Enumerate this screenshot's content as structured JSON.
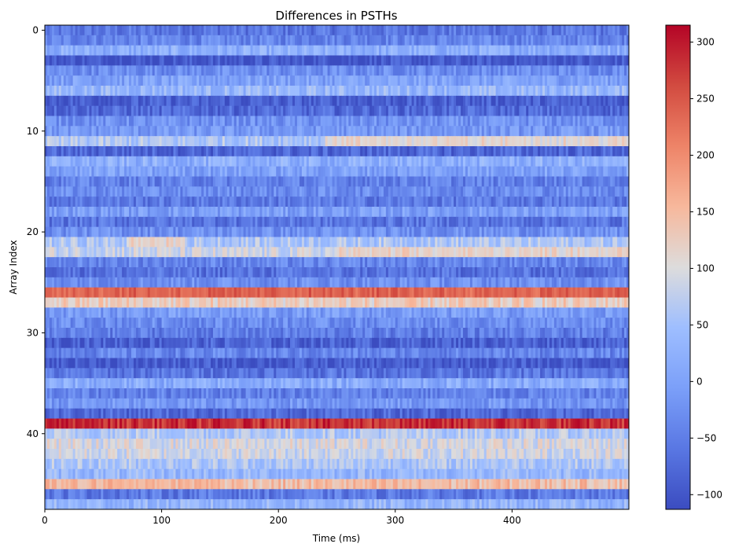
{
  "chart_data": {
    "type": "heatmap",
    "title": "Differences in PSTHs",
    "xlabel": "Time (ms)",
    "ylabel": "Array Index",
    "x_range": [
      0,
      500
    ],
    "y_range": [
      0,
      48
    ],
    "x_ticks": [
      0,
      100,
      200,
      300,
      400
    ],
    "y_ticks": [
      0,
      10,
      20,
      30,
      40
    ],
    "colormap": "coolwarm",
    "colorbar": {
      "range": [
        -113,
        315
      ],
      "ticks": [
        -100,
        -50,
        0,
        50,
        100,
        150,
        200,
        250,
        300
      ],
      "tick_labels": [
        "−100",
        "−50",
        "0",
        "50",
        "100",
        "150",
        "200",
        "250",
        "300"
      ]
    },
    "row_profiles": [
      -60,
      -40,
      20,
      -100,
      -30,
      0,
      35,
      -90,
      -75,
      -25,
      -15,
      60,
      -80,
      20,
      0,
      -45,
      -30,
      -55,
      -5,
      -60,
      -25,
      60,
      85,
      -40,
      -65,
      -25,
      240,
      125,
      -10,
      -30,
      -50,
      -85,
      -40,
      -95,
      -60,
      15,
      -45,
      -15,
      -75,
      280,
      65,
      95,
      90,
      60,
      35,
      145,
      -55,
      30
    ],
    "notes_hotspots": [
      {
        "row": 11,
        "t_start": 240,
        "t_end": 500,
        "value": 150
      },
      {
        "row": 21,
        "t_start": 70,
        "t_end": 120,
        "value": 160
      },
      {
        "row": 22,
        "t_start": 250,
        "t_end": 500,
        "value": 140
      },
      {
        "row": 26,
        "t_start": 0,
        "t_end": 500,
        "value": 240
      },
      {
        "row": 39,
        "t_start": 0,
        "t_end": 50,
        "value": 300
      },
      {
        "row": 45,
        "t_start": 40,
        "t_end": 150,
        "value": 170
      }
    ]
  }
}
